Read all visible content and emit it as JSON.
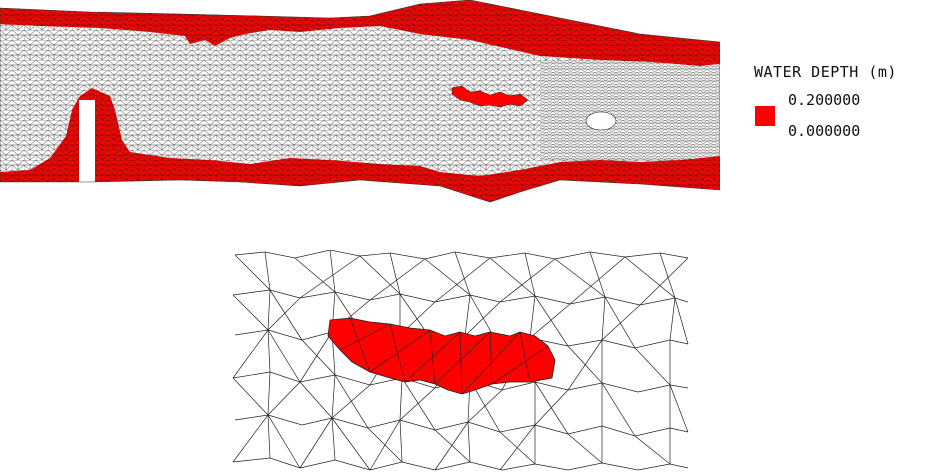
{
  "legend": {
    "title": "WATER DEPTH (m)",
    "max_label": "0.200000",
    "min_label": "0.000000"
  },
  "colors": {
    "depth_fill": "#ff0000",
    "mesh_line": "#222222",
    "background": "#ffffff"
  },
  "views": [
    {
      "name": "full-domain",
      "description_visible": false
    },
    {
      "name": "zoom-detail",
      "description_visible": false
    }
  ]
}
